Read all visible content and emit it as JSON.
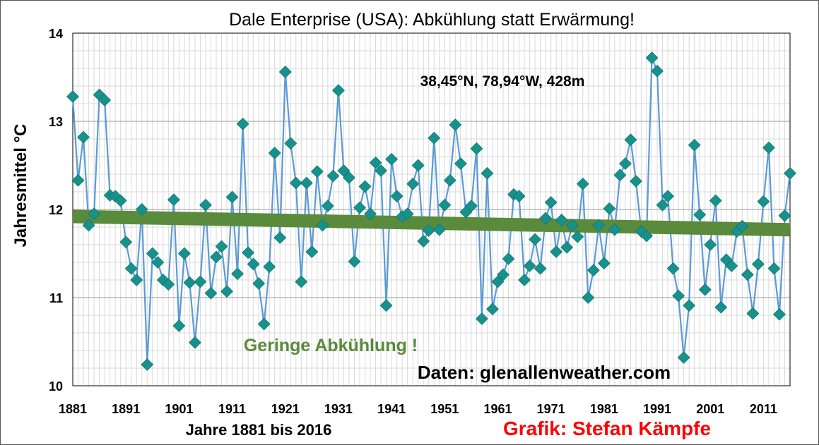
{
  "chart_data": {
    "type": "line",
    "title": "Dale Enterprise (USA): Abkühlung statt Erwärmung!",
    "xlabel": "Jahre 1881 bis 2016",
    "ylabel": "Jahresmittel °C",
    "xlim": [
      1881,
      2016
    ],
    "ylim": [
      10,
      14
    ],
    "x_ticks": [
      "1881",
      "1891",
      "1901",
      "1911",
      "1921",
      "1931",
      "1941",
      "1951",
      "1961",
      "1971",
      "1981",
      "1991",
      "2001",
      "2011"
    ],
    "y_ticks": [
      "10",
      "11",
      "12",
      "13",
      "14"
    ],
    "grid": "both",
    "legend": "none",
    "annotations": {
      "location": "38,45°N, 78,94°W, 428m",
      "trend_note": "Geringe Abkühlung !",
      "source": "Daten: glenallenweather.com",
      "credit": "Grafik: Stefan Kämpfe"
    },
    "series": [
      {
        "x_start": 1881,
        "values": [
          13.28,
          12.33,
          12.82,
          11.82,
          11.95,
          13.3,
          13.24,
          12.16,
          12.15,
          12.1,
          11.63,
          11.33,
          11.2,
          12.0,
          10.24,
          11.5,
          11.4,
          11.2,
          11.15,
          12.11,
          10.68,
          11.5,
          11.17,
          10.49,
          11.18,
          12.05,
          11.05,
          11.46,
          11.58,
          11.07,
          12.14,
          11.27,
          12.97,
          11.51,
          11.38,
          11.16,
          10.7,
          11.35,
          12.64,
          11.68,
          13.56,
          12.75,
          12.3,
          11.18,
          12.3,
          11.52,
          12.43,
          11.82,
          12.04,
          12.38,
          13.35,
          12.44,
          12.36,
          11.41,
          12.02,
          12.26,
          11.95,
          12.53,
          12.44,
          10.91,
          12.57,
          12.15,
          11.92,
          11.95,
          12.29,
          12.5,
          11.64,
          11.76,
          12.81,
          11.77,
          12.05,
          12.33,
          12.96,
          12.52,
          11.97,
          12.04,
          12.69,
          10.76,
          12.41,
          10.87,
          11.18,
          11.26,
          11.44,
          12.17,
          12.15,
          11.2,
          11.36,
          11.66,
          11.33,
          11.9,
          12.08,
          11.52,
          11.88,
          11.57,
          11.82,
          11.69,
          12.29,
          11.0,
          11.31,
          11.82,
          11.39,
          12.01,
          11.77,
          12.39,
          12.52,
          12.79,
          12.32,
          11.75,
          11.7,
          13.72,
          13.57,
          12.05,
          12.15,
          11.33,
          11.02,
          10.32,
          10.91,
          12.73,
          11.94,
          11.09,
          11.6,
          12.1,
          10.89,
          11.43,
          11.36,
          11.75,
          11.81,
          11.26,
          10.82,
          11.38,
          12.09,
          12.7,
          11.33,
          10.81,
          11.93,
          12.41
        ],
        "color": "#5b9bd5",
        "marker_color": "#17918c"
      }
    ],
    "trend": {
      "start": [
        1881,
        11.92
      ],
      "end": [
        2016,
        11.77
      ],
      "color": "#5a8a3c"
    }
  }
}
